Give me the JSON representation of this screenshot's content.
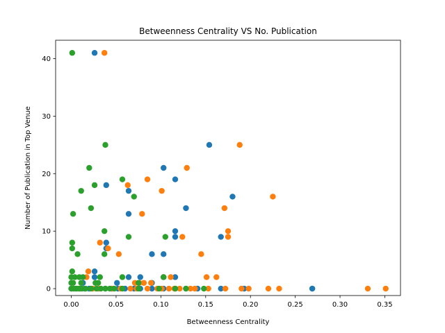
{
  "chart_data": {
    "type": "scatter",
    "title": "Betweenness Centrality VS No. Publication",
    "xlabel": "Betweenness Centrality",
    "ylabel": "Number of Publication in Top Venue",
    "xlim": [
      -0.0175,
      0.3675
    ],
    "ylim": [
      -1.2,
      43.2
    ],
    "x_ticks": [
      0.0,
      0.05,
      0.1,
      0.15,
      0.2,
      0.25,
      0.3,
      0.35
    ],
    "x_tick_labels": [
      "0.00",
      "0.05",
      "0.10",
      "0.15",
      "0.20",
      "0.25",
      "0.30",
      "0.35"
    ],
    "y_ticks": [
      0,
      10,
      20,
      30,
      40
    ],
    "y_tick_labels": [
      "0",
      "10",
      "20",
      "30",
      "40"
    ],
    "grid": false,
    "legend": "none",
    "series": [
      {
        "color": "#1f77b4",
        "points": [
          [
            0.026,
            41
          ],
          [
            0.154,
            25
          ],
          [
            0.103,
            21
          ],
          [
            0.039,
            18
          ],
          [
            0.116,
            19
          ],
          [
            0.064,
            17
          ],
          [
            0.18,
            16
          ],
          [
            0.128,
            14
          ],
          [
            0.064,
            13
          ],
          [
            0.116,
            10
          ],
          [
            0.116,
            9
          ],
          [
            0.167,
            9
          ],
          [
            0.039,
            8
          ],
          [
            0.039,
            7
          ],
          [
            0.09,
            6
          ],
          [
            0.103,
            6
          ],
          [
            0.026,
            3
          ],
          [
            0.026,
            2
          ],
          [
            0.064,
            2
          ],
          [
            0.077,
            2
          ],
          [
            0.103,
            2
          ],
          [
            0.116,
            2
          ],
          [
            0.051,
            1
          ],
          [
            0.09,
            1
          ],
          [
            0.013,
            1
          ],
          [
            0.0,
            0
          ],
          [
            0.005,
            0
          ],
          [
            0.01,
            0
          ],
          [
            0.015,
            0
          ],
          [
            0.02,
            0
          ],
          [
            0.03,
            0
          ],
          [
            0.038,
            0
          ],
          [
            0.045,
            0
          ],
          [
            0.052,
            0
          ],
          [
            0.06,
            0
          ],
          [
            0.07,
            0
          ],
          [
            0.077,
            0
          ],
          [
            0.09,
            0
          ],
          [
            0.103,
            0
          ],
          [
            0.116,
            0
          ],
          [
            0.128,
            0
          ],
          [
            0.141,
            0
          ],
          [
            0.167,
            0
          ],
          [
            0.193,
            0
          ],
          [
            0.269,
            0
          ],
          [
            0.269,
            0
          ]
        ]
      },
      {
        "color": "#ff7f0e",
        "points": [
          [
            0.037,
            41
          ],
          [
            0.188,
            25
          ],
          [
            0.129,
            21
          ],
          [
            0.085,
            19
          ],
          [
            0.063,
            18
          ],
          [
            0.101,
            17
          ],
          [
            0.225,
            16
          ],
          [
            0.171,
            14
          ],
          [
            0.079,
            13
          ],
          [
            0.175,
            10
          ],
          [
            0.175,
            9
          ],
          [
            0.124,
            9
          ],
          [
            0.032,
            8
          ],
          [
            0.041,
            7
          ],
          [
            0.053,
            6
          ],
          [
            0.145,
            6
          ],
          [
            0.019,
            3
          ],
          [
            0.017,
            2
          ],
          [
            0.103,
            2
          ],
          [
            0.111,
            2
          ],
          [
            0.151,
            2
          ],
          [
            0.162,
            2
          ],
          [
            0.071,
            1
          ],
          [
            0.076,
            1
          ],
          [
            0.081,
            1
          ],
          [
            0.089,
            1
          ],
          [
            0.002,
            0
          ],
          [
            0.008,
            0
          ],
          [
            0.024,
            0
          ],
          [
            0.031,
            0
          ],
          [
            0.046,
            0
          ],
          [
            0.055,
            0
          ],
          [
            0.066,
            0
          ],
          [
            0.073,
            0
          ],
          [
            0.085,
            0
          ],
          [
            0.096,
            0
          ],
          [
            0.101,
            0
          ],
          [
            0.109,
            0
          ],
          [
            0.115,
            0
          ],
          [
            0.121,
            0
          ],
          [
            0.133,
            0
          ],
          [
            0.138,
            0
          ],
          [
            0.153,
            0
          ],
          [
            0.172,
            0
          ],
          [
            0.19,
            0
          ],
          [
            0.198,
            0
          ],
          [
            0.22,
            0
          ],
          [
            0.232,
            0
          ],
          [
            0.331,
            0
          ],
          [
            0.351,
            0
          ]
        ]
      },
      {
        "color": "#2ca02c",
        "points": [
          [
            0.001,
            41
          ],
          [
            0.038,
            25
          ],
          [
            0.02,
            21
          ],
          [
            0.057,
            19
          ],
          [
            0.026,
            18
          ],
          [
            0.011,
            17
          ],
          [
            0.07,
            16
          ],
          [
            0.022,
            14
          ],
          [
            0.002,
            13
          ],
          [
            0.037,
            10
          ],
          [
            0.064,
            9
          ],
          [
            0.105,
            9
          ],
          [
            0.001,
            8
          ],
          [
            0.001,
            7
          ],
          [
            0.007,
            6
          ],
          [
            0.037,
            6
          ],
          [
            0.001,
            3
          ],
          [
            0.0,
            2
          ],
          [
            0.004,
            2
          ],
          [
            0.009,
            2
          ],
          [
            0.013,
            2
          ],
          [
            0.032,
            2
          ],
          [
            0.057,
            2
          ],
          [
            0.103,
            2
          ],
          [
            0.0,
            1
          ],
          [
            0.002,
            1
          ],
          [
            0.011,
            1
          ],
          [
            0.027,
            1
          ],
          [
            0.03,
            1
          ],
          [
            0.075,
            1
          ],
          [
            0.0,
            0
          ],
          [
            0.003,
            0
          ],
          [
            0.006,
            0
          ],
          [
            0.009,
            0
          ],
          [
            0.012,
            0
          ],
          [
            0.016,
            0
          ],
          [
            0.022,
            0
          ],
          [
            0.028,
            0
          ],
          [
            0.033,
            0
          ],
          [
            0.038,
            0
          ],
          [
            0.043,
            0
          ],
          [
            0.048,
            0
          ],
          [
            0.057,
            0
          ],
          [
            0.075,
            0
          ],
          [
            0.098,
            0
          ],
          [
            0.116,
            0
          ],
          [
            0.128,
            0
          ],
          [
            0.148,
            0
          ]
        ]
      }
    ]
  }
}
